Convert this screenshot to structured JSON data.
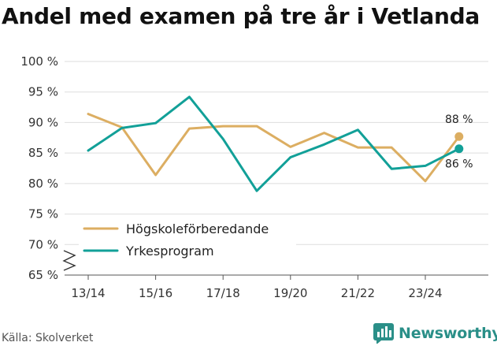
{
  "title": "Andel med examen på tre år i Vetlanda",
  "source": "Källa: Skolverket",
  "brand": "Newsworthy",
  "colors": {
    "hogskole": "#dcae62",
    "yrkes": "#12a098",
    "grid": "#dddddd",
    "axis": "#555555",
    "brand": "#2a8f88"
  },
  "chart_data": {
    "type": "line",
    "x": [
      "13/14",
      "14/15",
      "15/16",
      "16/17",
      "17/18",
      "18/19",
      "19/20",
      "20/21",
      "21/22",
      "22/23",
      "23/24",
      "24/25"
    ],
    "xtick_labels": [
      "13/14",
      "15/16",
      "17/18",
      "19/20",
      "21/22",
      "23/24"
    ],
    "yticks": [
      65,
      70,
      75,
      80,
      85,
      90,
      95,
      100
    ],
    "ytick_labels": [
      "65 %",
      "70 %",
      "75 %",
      "80 %",
      "85 %",
      "90 %",
      "95 %",
      "100 %"
    ],
    "ylim": [
      65,
      100
    ],
    "series": [
      {
        "name": "Högskoleförberedande",
        "color_key": "hogskole",
        "values": [
          91.4,
          89.2,
          81.4,
          89.0,
          89.4,
          89.4,
          86.0,
          88.3,
          85.9,
          85.9,
          80.4,
          87.7
        ],
        "end_label": "88 %"
      },
      {
        "name": "Yrkesprogram",
        "color_key": "yrkes",
        "values": [
          85.4,
          89.1,
          89.9,
          94.2,
          87.3,
          78.8,
          84.3,
          86.4,
          88.8,
          82.4,
          82.9,
          85.7
        ],
        "end_label": "86 %"
      }
    ],
    "legend_position": "bottom-left",
    "axis_break": true
  }
}
